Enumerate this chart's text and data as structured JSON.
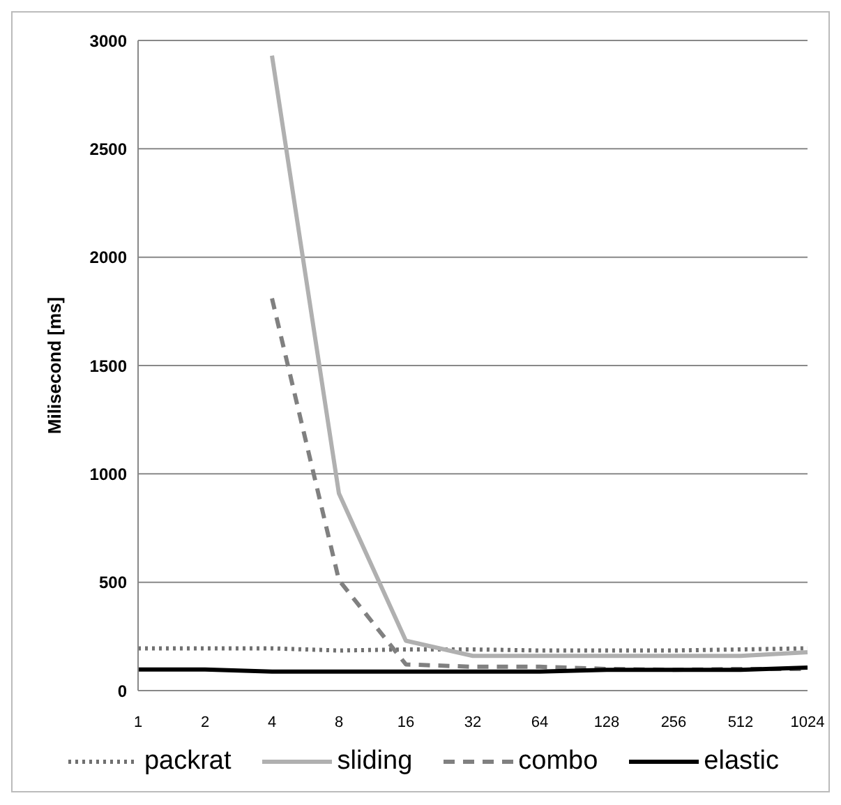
{
  "chart_data": {
    "type": "line",
    "ylabel": "Milisecond [ms]",
    "categories": [
      "1",
      "2",
      "4",
      "8",
      "16",
      "32",
      "64",
      "128",
      "256",
      "512",
      "1024"
    ],
    "series": [
      {
        "name": "packrat",
        "color": "#707070",
        "line_style": "dotted",
        "values": [
          195,
          195,
          195,
          185,
          190,
          190,
          185,
          185,
          185,
          190,
          195
        ]
      },
      {
        "name": "sliding",
        "color": "#b0b0b0",
        "line_style": "solid",
        "values": [
          null,
          null,
          2930,
          910,
          230,
          160,
          160,
          160,
          160,
          160,
          177
        ]
      },
      {
        "name": "combo",
        "color": "#808080",
        "line_style": "dashed",
        "values": [
          null,
          null,
          1810,
          510,
          121,
          110,
          110,
          100,
          96,
          100,
          100
        ]
      },
      {
        "name": "elastic",
        "color": "#000000",
        "line_style": "solid",
        "values": [
          97,
          97,
          88,
          88,
          88,
          88,
          88,
          96,
          96,
          96,
          106
        ]
      }
    ],
    "ylim": [
      0,
      3000
    ],
    "yticks": [
      0,
      500,
      1000,
      1500,
      2000,
      2500,
      3000
    ],
    "grid": "y",
    "legend": "bottom",
    "marker": "none"
  }
}
